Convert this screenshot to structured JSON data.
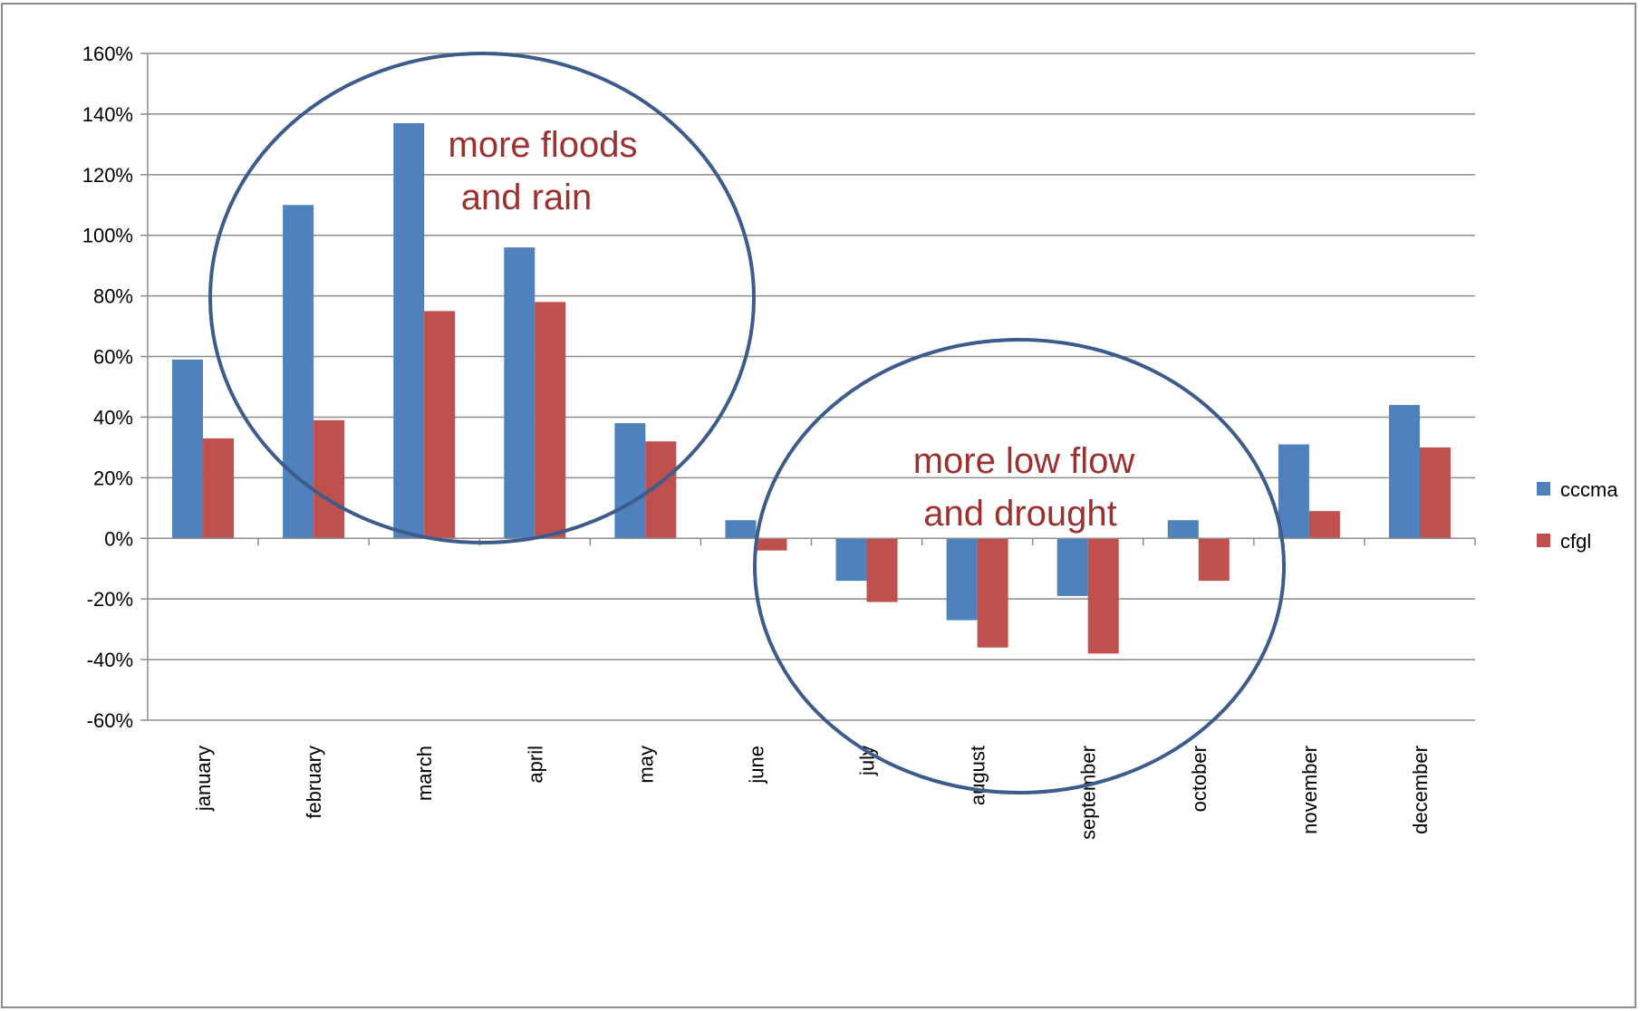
{
  "chart_data": {
    "type": "bar",
    "categories": [
      "january",
      "february",
      "march",
      "april",
      "may",
      "june",
      "july",
      "august",
      "september",
      "october",
      "november",
      "december"
    ],
    "series": [
      {
        "name": "cccma",
        "color": "#4f81bd",
        "values": [
          59,
          110,
          137,
          96,
          38,
          6,
          -14,
          -27,
          -19,
          6,
          31,
          44
        ]
      },
      {
        "name": "cfgl",
        "color": "#c0504d",
        "values": [
          33,
          39,
          75,
          78,
          32,
          -4,
          -21,
          -36,
          -38,
          -14,
          9,
          30
        ]
      }
    ],
    "ylim": [
      -60,
      160
    ],
    "ytick_step": 20,
    "ytick_format": "percent",
    "grid": true,
    "legend": "right",
    "annotations": [
      {
        "lines": [
          "more floods",
          "and rain"
        ],
        "color": "#9b3131"
      },
      {
        "lines": [
          "more low flow",
          "and drought"
        ],
        "color": "#9b3131"
      }
    ],
    "title": "",
    "xlabel": "",
    "ylabel": ""
  }
}
